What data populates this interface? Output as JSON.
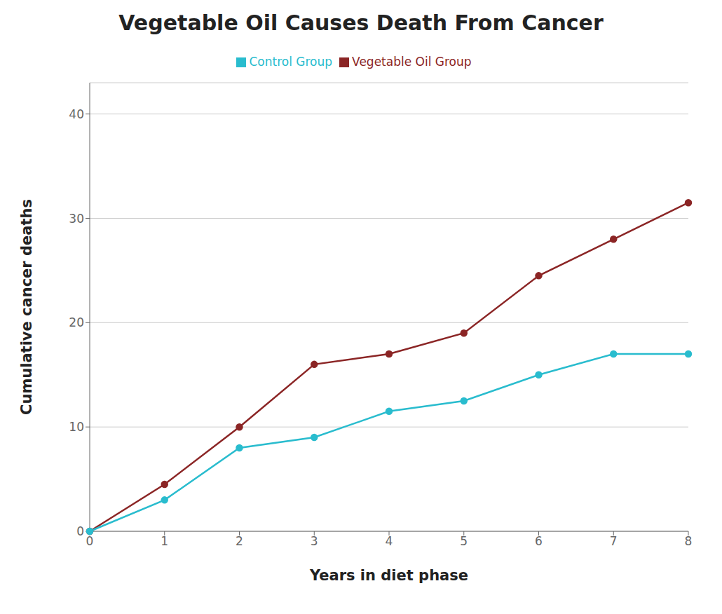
{
  "chart_data": {
    "type": "line",
    "title": "Vegetable Oil Causes Death From Cancer",
    "xlabel": "Years in diet phase",
    "ylabel": "Cumulative cancer deaths",
    "x": [
      0,
      1,
      2,
      3,
      4,
      5,
      6,
      7,
      8
    ],
    "series": [
      {
        "name": "Vegetable Oil Group",
        "color": "#8B2525",
        "marker": "circle",
        "values": [
          0,
          4.5,
          10,
          16,
          17,
          19,
          24.5,
          28,
          31.5
        ]
      },
      {
        "name": "Control Group",
        "color": "#29BCCE",
        "marker": "circle",
        "values": [
          0,
          3,
          8,
          9,
          11.5,
          12.5,
          15,
          17,
          17
        ]
      }
    ],
    "xlim": [
      0,
      8
    ],
    "ylim": [
      0,
      43
    ],
    "xticks": [
      0,
      1,
      2,
      3,
      4,
      5,
      6,
      7,
      8
    ],
    "yticks": [
      0,
      10,
      20,
      30,
      40
    ],
    "grid": "y",
    "legend": "top"
  }
}
